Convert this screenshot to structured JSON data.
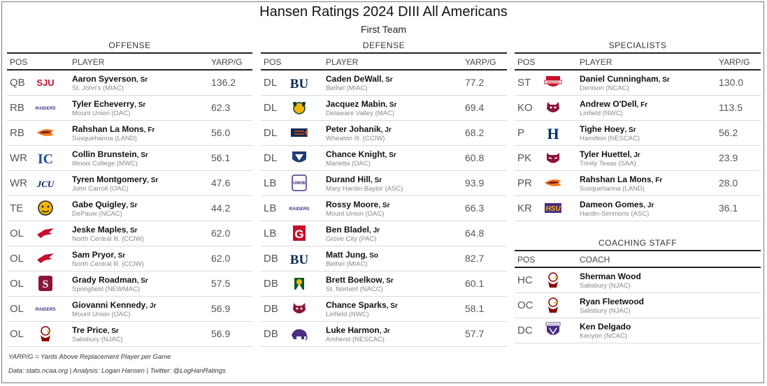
{
  "title": "Hansen Ratings 2024 DIII All Americans",
  "subtitle": "First Team",
  "headers": {
    "pos": "POS",
    "player": "PLAYER",
    "yarp": "YARP/G",
    "coach": "COACH"
  },
  "offense": {
    "title": "OFFENSE",
    "rows": [
      {
        "pos": "QB",
        "name": "Aaron Syverson",
        "cls": "Sr",
        "school": "St. John's (MIAC)",
        "yarp": "136.2",
        "logo": "sju"
      },
      {
        "pos": "RB",
        "name": "Tyler Echeverry",
        "cls": "Sr",
        "school": "Mount Union (OAC)",
        "yarp": "62.3",
        "logo": "raiders"
      },
      {
        "pos": "RB",
        "name": "Rahshan La Mons",
        "cls": "Fr",
        "school": "Susquehanna (LAND)",
        "yarp": "56.0",
        "logo": "hawk"
      },
      {
        "pos": "WR",
        "name": "Collin Brunstein",
        "cls": "Sr",
        "school": "Illinois College (MWC)",
        "yarp": "56.1",
        "logo": "ic"
      },
      {
        "pos": "WR",
        "name": "Tyren Montgomery",
        "cls": "Sr",
        "school": "John Carroll (OAC)",
        "yarp": "47.6",
        "logo": "jcu"
      },
      {
        "pos": "TE",
        "name": "Gabe Quigley",
        "cls": "Sr",
        "school": "DePauw (NCAC)",
        "yarp": "44.2",
        "logo": "tigers"
      },
      {
        "pos": "OL",
        "name": "Jeske Maples",
        "cls": "Sr",
        "school": "North Central Ill. (CCIW)",
        "yarp": "62.0",
        "logo": "cardinal"
      },
      {
        "pos": "OL",
        "name": "Sam Pryor",
        "cls": "Sr",
        "school": "North Central Ill. (CCIW)",
        "yarp": "62.0",
        "logo": "cardinal"
      },
      {
        "pos": "OL",
        "name": "Grady Roadman",
        "cls": "Sr",
        "school": "Springfield (NEWMAC)",
        "yarp": "57.5",
        "logo": "springfield"
      },
      {
        "pos": "OL",
        "name": "Giovanni Kennedy",
        "cls": "Jr",
        "school": "Mount Union (OAC)",
        "yarp": "56.9",
        "logo": "raiders"
      },
      {
        "pos": "OL",
        "name": "Tre Price",
        "cls": "Sr",
        "school": "Salisbury (NJAC)",
        "yarp": "56.9",
        "logo": "gull"
      }
    ]
  },
  "defense": {
    "title": "DEFENSE",
    "rows": [
      {
        "pos": "DL",
        "name": "Caden DeWall",
        "cls": "Sr",
        "school": "Bethel (MIAC)",
        "yarp": "77.2",
        "logo": "bu"
      },
      {
        "pos": "DL",
        "name": "Jacquez Mabin",
        "cls": "Sr",
        "school": "Delaware Valley (MAC)",
        "yarp": "69.4",
        "logo": "ram"
      },
      {
        "pos": "DL",
        "name": "Peter Johanik",
        "cls": "Jr",
        "school": "Wheaton Ill. (CCIW)",
        "yarp": "68.2",
        "logo": "thunder"
      },
      {
        "pos": "DL",
        "name": "Chance Knight",
        "cls": "Sr",
        "school": "Marietta (OAC)",
        "yarp": "60.8",
        "logo": "pioneer"
      },
      {
        "pos": "LB",
        "name": "Durand Hill",
        "cls": "Sr",
        "school": "Mary Hardin-Baylor (ASC)",
        "yarp": "93.9",
        "logo": "umhb"
      },
      {
        "pos": "LB",
        "name": "Rossy Moore",
        "cls": "Sr",
        "school": "Mount Union (OAC)",
        "yarp": "66.3",
        "logo": "raiders"
      },
      {
        "pos": "LB",
        "name": "Ben Bladel",
        "cls": "Jr",
        "school": "Grove City (PAC)",
        "yarp": "64.8",
        "logo": "g"
      },
      {
        "pos": "DB",
        "name": "Matt Jung",
        "cls": "So",
        "school": "Bethel (MIAC)",
        "yarp": "82.7",
        "logo": "bu"
      },
      {
        "pos": "DB",
        "name": "Brett Boelkow",
        "cls": "Sr",
        "school": "St. Norbert (NACC)",
        "yarp": "60.1",
        "logo": "snc"
      },
      {
        "pos": "DB",
        "name": "Chance Sparks",
        "cls": "Sr",
        "school": "Linfield (NWC)",
        "yarp": "58.1",
        "logo": "wildcat"
      },
      {
        "pos": "DB",
        "name": "Luke Harmon",
        "cls": "Jr",
        "school": "Amherst (NESCAC)",
        "yarp": "57.7",
        "logo": "mammoth"
      }
    ]
  },
  "specialists": {
    "title": "SPECIALISTS",
    "rows": [
      {
        "pos": "ST",
        "name": "Daniel Cunningham",
        "cls": "Sr",
        "school": "Denison (NCAC)",
        "yarp": "130.0",
        "logo": "denison"
      },
      {
        "pos": "KO",
        "name": "Andrew O'Dell",
        "cls": "Fr",
        "school": "Linfield (NWC)",
        "yarp": "113.5",
        "logo": "wildcat"
      },
      {
        "pos": "P",
        "name": "Tighe Hoey",
        "cls": "Sr",
        "school": "Hamilton (NESCAC)",
        "yarp": "56.2",
        "logo": "h"
      },
      {
        "pos": "PK",
        "name": "Tyler Huettel",
        "cls": "Jr",
        "school": "Trinity Texas (SAA)",
        "yarp": "23.9",
        "logo": "tiger"
      },
      {
        "pos": "PR",
        "name": "Rahshan La Mons",
        "cls": "Fr",
        "school": "Susquehanna (LAND)",
        "yarp": "28.0",
        "logo": "hawk"
      },
      {
        "pos": "KR",
        "name": "Dameon Gomes",
        "cls": "Jr",
        "school": "Hardin-Simmons (ASC)",
        "yarp": "36.1",
        "logo": "hsu"
      }
    ]
  },
  "coaching": {
    "title": "COACHING STAFF",
    "rows": [
      {
        "pos": "HC",
        "name": "Sherman Wood",
        "cls": "",
        "school": "Salisbury (NJAC)",
        "logo": "gull"
      },
      {
        "pos": "OC",
        "name": "Ryan Fleetwood",
        "cls": "",
        "school": "Salisbury (NJAC)",
        "logo": "gull"
      },
      {
        "pos": "DC",
        "name": "Ken Delgado",
        "cls": "",
        "school": "Kenyon (NCAC)",
        "logo": "kenyon"
      }
    ]
  },
  "footnotes": {
    "definition": "YARP/G = Yards Above Replacement Player per Game",
    "credits": "Data: stats.ncaa.org | Analysis: Logan Hansen | Twitter: @LogHanRatings"
  },
  "logo_text": {
    "sju": "SJU",
    "raiders": "RAIDERS",
    "ic": "IC",
    "jcu": "JCU",
    "bu": "BU",
    "umhb": "UMHB",
    "g": "G",
    "h": "H",
    "hsu": "HSU",
    "kenyon": "KENYON",
    "denison": "DENISON"
  }
}
